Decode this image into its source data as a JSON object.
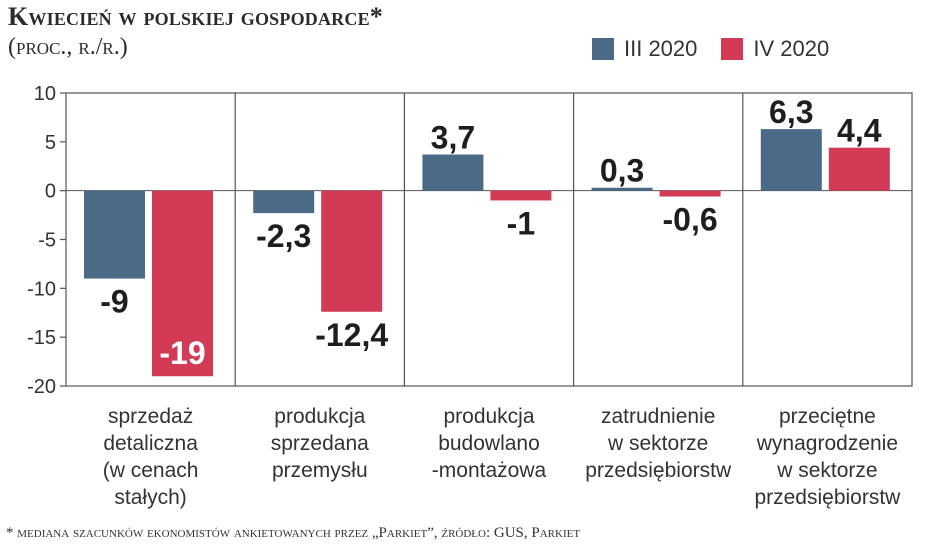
{
  "title": "Kwiecień w polskiej gospodarce*",
  "subtitle": "(proc., r./r.)",
  "footnote": "* mediana szacunków ekonomistów ankietowanych przez „Parkiet”, źródło: GUS, Parkiet",
  "colors": {
    "series1": "#4a6a86",
    "series2": "#d23a56",
    "grid": "#555555"
  },
  "chart_data": {
    "type": "bar",
    "categories": [
      [
        "sprzedaż",
        "detaliczna",
        "(w cenach",
        "stałych)"
      ],
      [
        "produkcja",
        "sprzedana",
        "przemysłu"
      ],
      [
        "produkcja",
        "budowlano",
        "-montażowa"
      ],
      [
        "zatrudnienie",
        "w sektorze",
        "przedsiębiorstw"
      ],
      [
        "przeciętne",
        "wynagrodzenie",
        "w sektorze",
        "przedsiębiorstw"
      ]
    ],
    "series": [
      {
        "name": "III 2020",
        "values": [
          -9,
          -2.3,
          3.7,
          0.3,
          6.3
        ],
        "labels": [
          "-9",
          "-2,3",
          "3,7",
          "0,3",
          "6,3"
        ]
      },
      {
        "name": "IV 2020",
        "values": [
          -19,
          -12.4,
          -1,
          -0.6,
          4.4
        ],
        "labels": [
          "-19",
          "-12,4",
          "-1",
          "-0,6",
          "4,4"
        ]
      }
    ],
    "ylim": [
      -20,
      10
    ],
    "yticks": [
      10,
      5,
      0,
      -5,
      -10,
      -15,
      -20
    ],
    "ytick_labels": [
      "10",
      "5",
      "0",
      "-5",
      "-10",
      "-15",
      "-20"
    ],
    "legend": "top-right",
    "grid": false
  }
}
